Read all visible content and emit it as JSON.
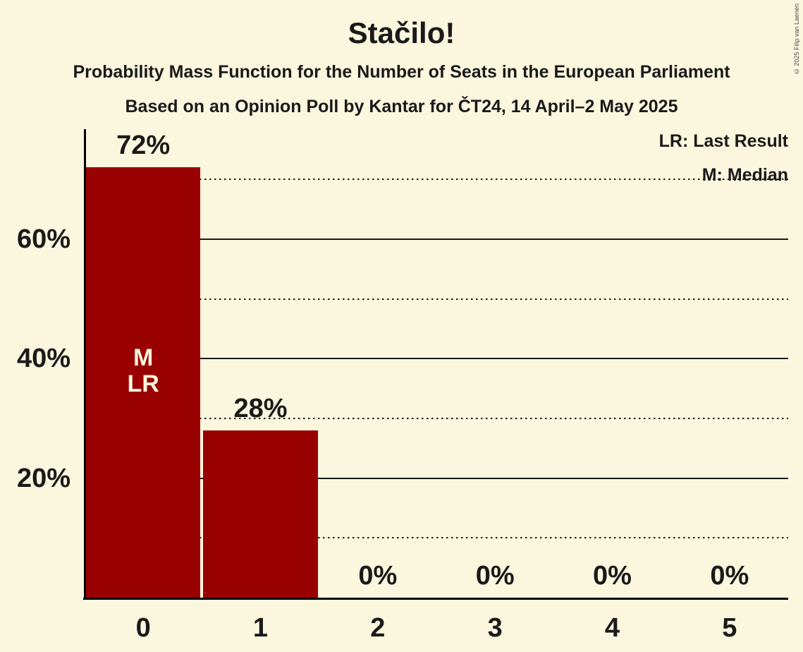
{
  "title": "Stačilo!",
  "subtitle_line1": "Probability Mass Function for the Number of Seats in the European Parliament",
  "subtitle_line2": "Based on an Opinion Poll by Kantar for ČT24, 14 April–2 May 2025",
  "legend": {
    "lr_label": "LR: Last Result",
    "m_label": "M: Median"
  },
  "copyright": "© 2025 Filip van Laenen",
  "colors": {
    "background": "#FBF6DE",
    "bar": "#990000",
    "text": "#1A1A1A",
    "gridline": "#1A1A1A",
    "axis": "#000000",
    "bar_annotation_text": "#FBF6DE",
    "copyright_text": "#4A4A4A"
  },
  "chart_data": {
    "type": "bar",
    "title": "Stačilo!",
    "subtitle": "Probability Mass Function for the Number of Seats in the European Parliament",
    "source_note": "Based on an Opinion Poll by Kantar for ČT24, 14 April–2 May 2025",
    "categories": [
      "0",
      "1",
      "2",
      "3",
      "4",
      "5"
    ],
    "values": [
      72,
      28,
      0,
      0,
      0,
      0
    ],
    "value_labels": [
      "72%",
      "28%",
      "0%",
      "0%",
      "0%",
      "0%"
    ],
    "ylim": [
      0,
      78
    ],
    "yticks": [
      {
        "value": 20,
        "label": "20%"
      },
      {
        "value": 40,
        "label": "40%"
      },
      {
        "value": 60,
        "label": "60%"
      }
    ],
    "solid_gridlines": [
      20,
      40,
      60
    ],
    "dotted_gridlines": [
      10,
      30,
      50,
      70
    ],
    "bar_annotations": [
      {
        "bar_index": 0,
        "lines": [
          "M",
          "LR"
        ]
      }
    ],
    "legend_entries": [
      "LR: Last Result",
      "M: Median"
    ],
    "legend_position": "top-right",
    "grid": true
  }
}
